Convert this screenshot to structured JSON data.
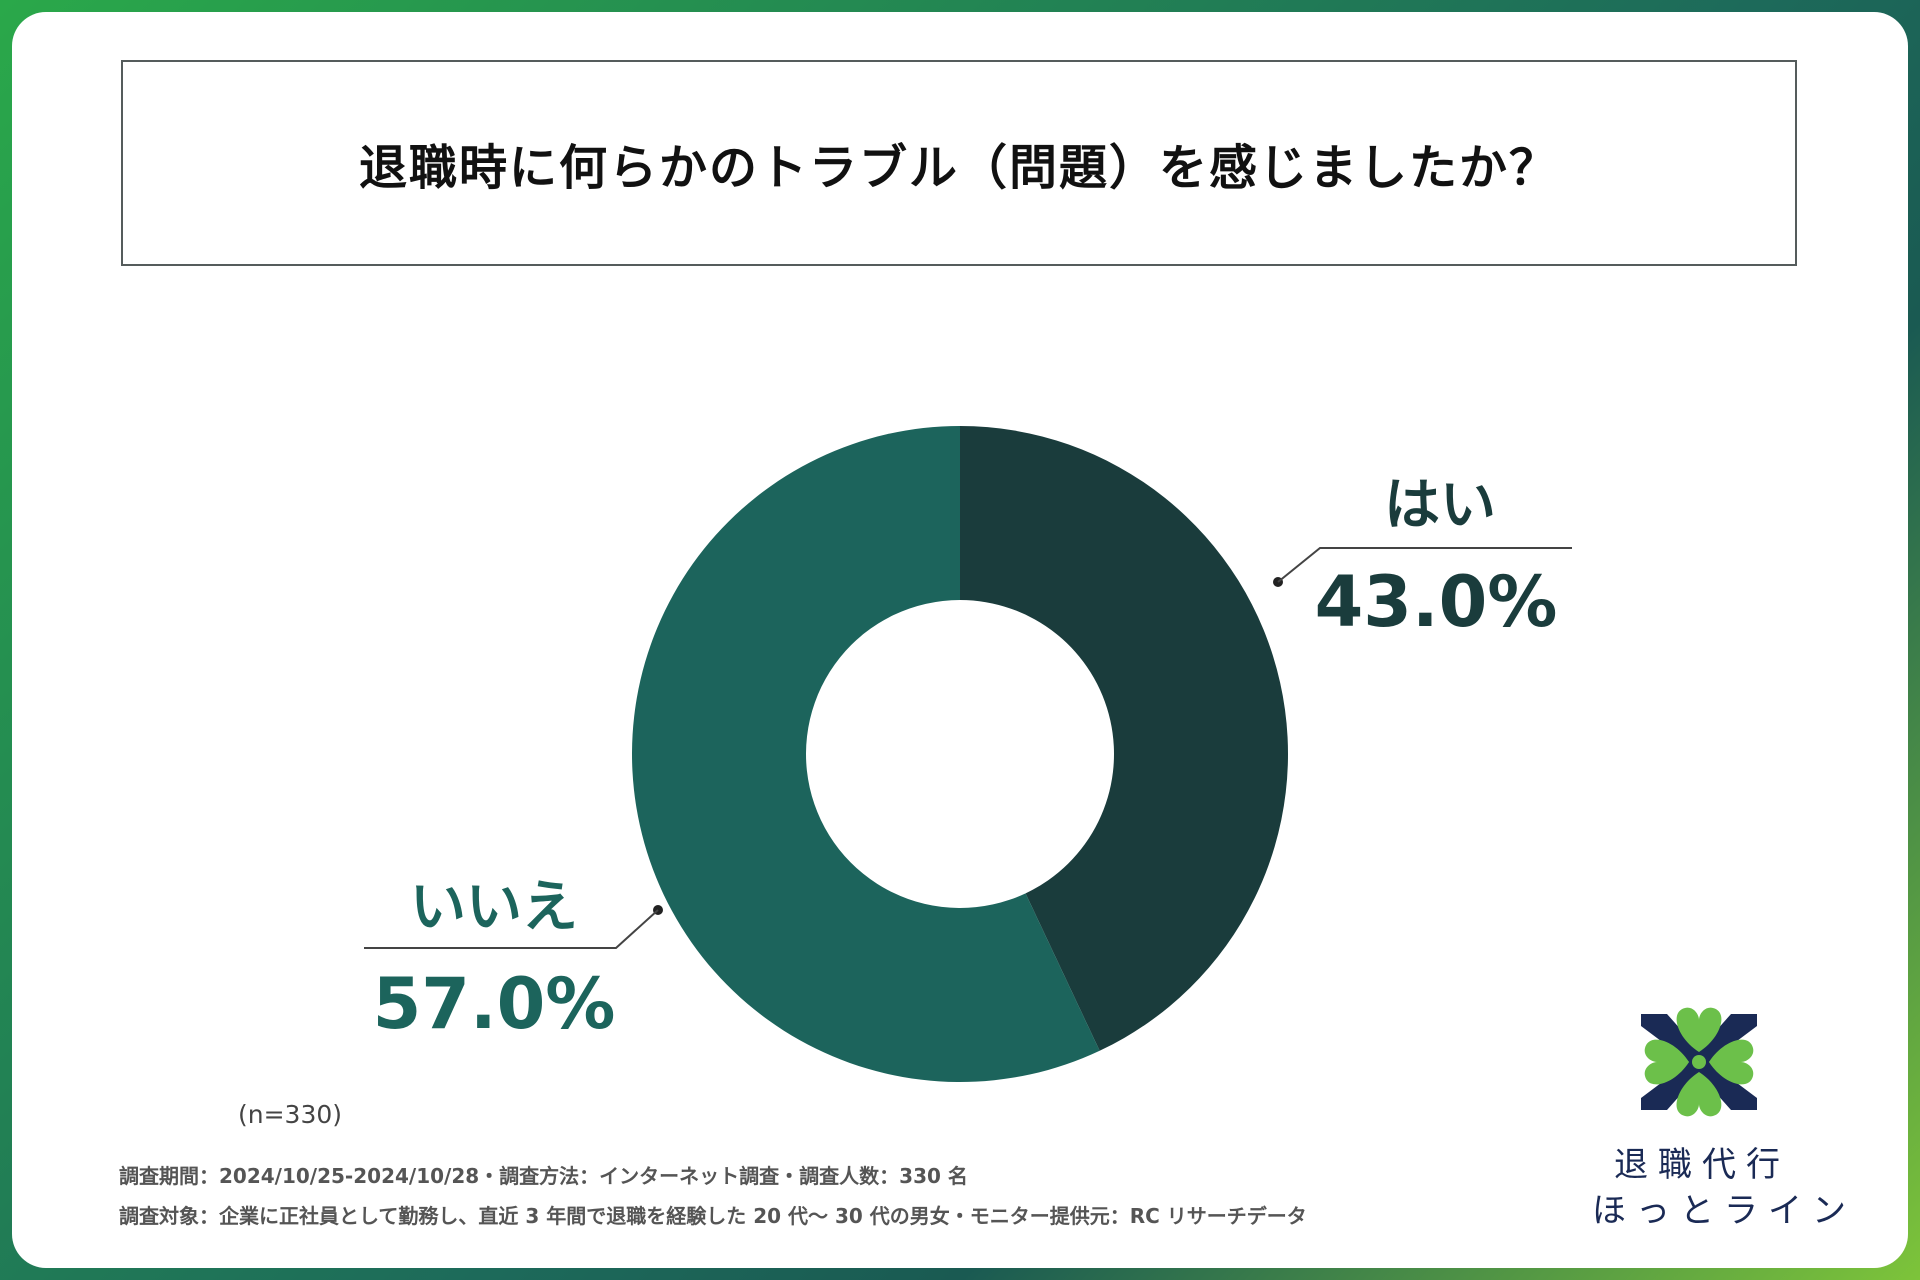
{
  "title": "退職時に何らかのトラブル（問題）を感じましたか？",
  "chart_data": {
    "type": "pie",
    "donut": true,
    "title": "退職時に何らかのトラブル（問題）を感じましたか？",
    "categories": [
      "はい",
      "いいえ"
    ],
    "values": [
      43.0,
      57.0
    ],
    "labels": [
      "43.0%",
      "57.0%"
    ],
    "colors": [
      "#1a3c3c",
      "#1c645c"
    ],
    "sample_note": "(n=330)"
  },
  "footer": {
    "line1": "調査期間：2024/10/25-2024/10/28・調査方法：インターネット調査・調査人数：330 名",
    "line2": "調査対象：企業に正社員として勤務し、直近 3 年間で退職を経験した 20 代〜 30 代の男女・モニター提供元：RC リサーチデータ"
  },
  "brand": {
    "line1": "退職代行",
    "line2": "ほっとライン",
    "logo_icon": "clover-heart-icon",
    "colors": {
      "green": "#6cc04a",
      "navy": "#1a2a55"
    }
  }
}
